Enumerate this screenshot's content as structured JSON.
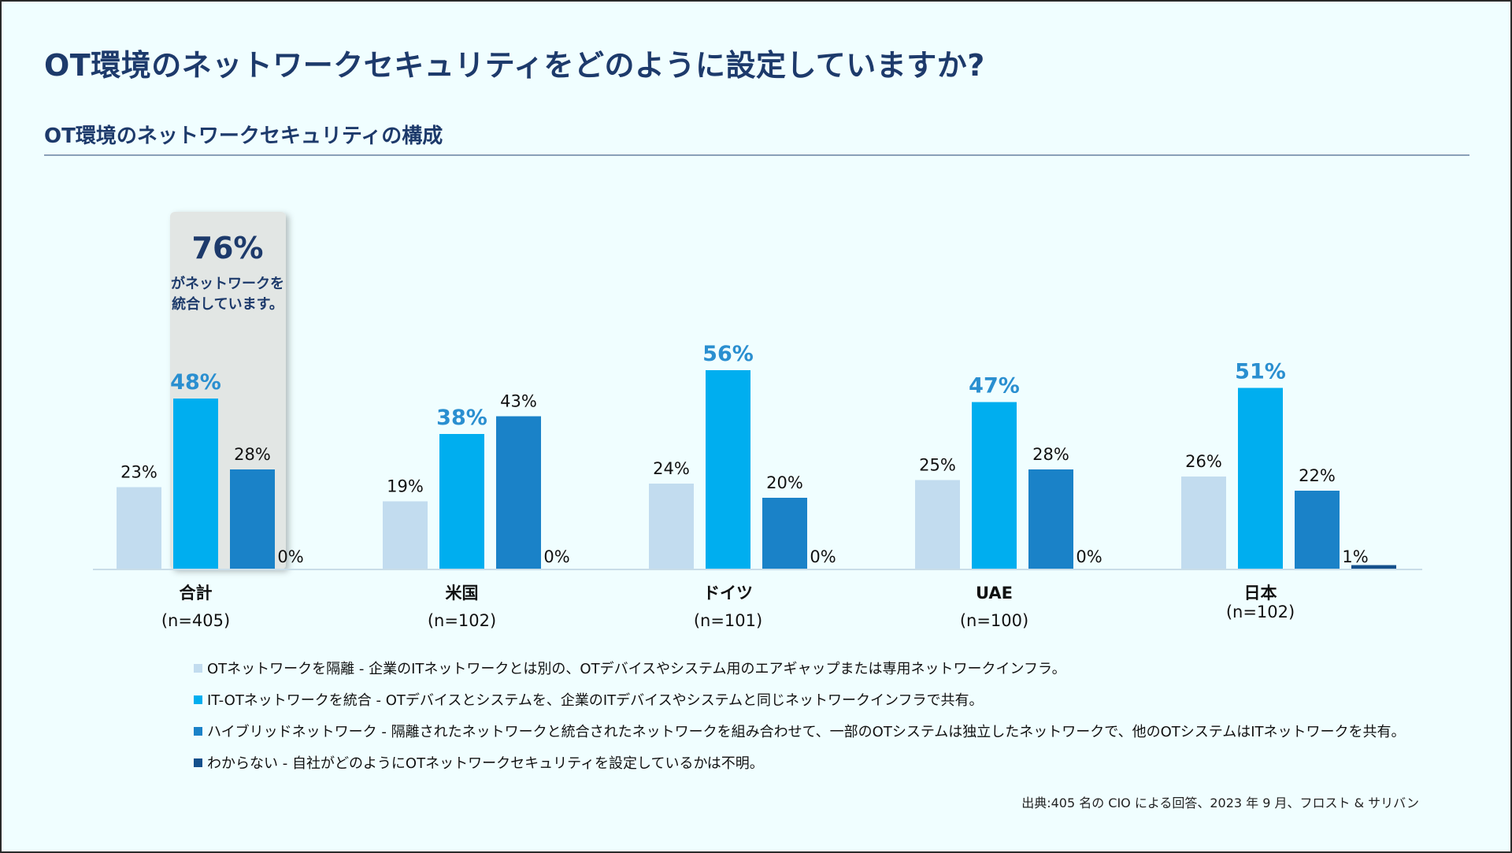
{
  "title": "OT環境のネットワークセキュリティをどのように設定していますか?",
  "subtitle": "OT環境のネットワークセキュリティの構成",
  "highlight": {
    "value": "76%",
    "text_line1": "がネットワークを",
    "text_line2": "統合しています。"
  },
  "chart_data": {
    "type": "bar",
    "categories": [
      "合計",
      "米国",
      "ドイツ",
      "UAE",
      "日本"
    ],
    "category_n": [
      "(n=405)",
      "(n=102)",
      "(n=101)",
      "(n=100)",
      "(n=102)"
    ],
    "series": [
      {
        "name": "OTネットワークを隔離",
        "color": "#c2dcef",
        "values": [
          23,
          19,
          24,
          25,
          26
        ],
        "labels": [
          "23%",
          "19%",
          "24%",
          "25%",
          "26%"
        ]
      },
      {
        "name": "IT-OTネットワークを統合",
        "color": "#00aeef",
        "values": [
          48,
          38,
          56,
          47,
          51
        ],
        "labels": [
          "48%",
          "38%",
          "56%",
          "47%",
          "51%"
        ]
      },
      {
        "name": "ハイブリッドネットワーク",
        "color": "#1a82c8",
        "values": [
          28,
          43,
          20,
          28,
          22
        ],
        "labels": [
          "28%",
          "43%",
          "20%",
          "28%",
          "22%"
        ]
      },
      {
        "name": "わからない",
        "color": "#14508c",
        "values": [
          0,
          0,
          0,
          0,
          1
        ],
        "labels": [
          "0%",
          "0%",
          "0%",
          "0%",
          "1%"
        ]
      }
    ],
    "ylim": [
      0,
      60
    ],
    "xlabel": "",
    "ylabel": ""
  },
  "legend": [
    {
      "text": "OTネットワークを隔離 - 企業のITネットワークとは別の、OTデバイスやシステム用のエアギャップまたは専用ネットワークインフラ。",
      "color": "#c2dcef"
    },
    {
      "text": "IT-OTネットワークを統合 - OTデバイスとシステムを、企業のITデバイスやシステムと同じネットワークインフラで共有。",
      "color": "#00aeef"
    },
    {
      "text": "ハイブリッドネットワーク - 隔離されたネットワークと統合されたネットワークを組み合わせて、一部のOTシステムは独立したネットワークで、他のOTシステムはITネットワークを共有。",
      "color": "#1a82c8"
    },
    {
      "text": "わからない - 自社がどのようにOTネットワークセキュリティを設定しているかは不明。",
      "color": "#14508c"
    }
  ],
  "source": "出典:405 名の CIO による回答、2023 年 9 月、フロスト & サリバン"
}
